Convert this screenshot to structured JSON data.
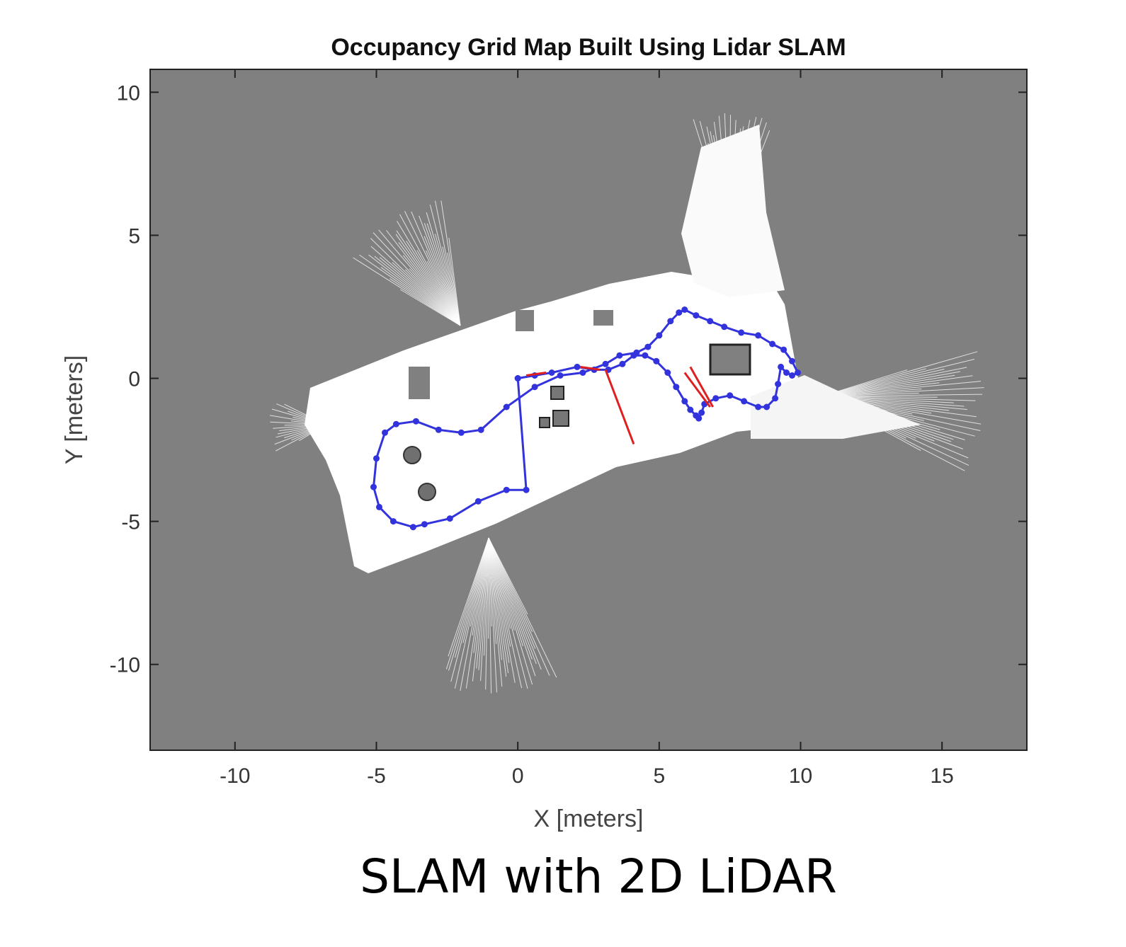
{
  "chart_data": {
    "type": "scatter",
    "title": "Occupancy Grid Map Built Using Lidar SLAM",
    "xlabel": "X [meters]",
    "ylabel": "Y [meters]",
    "xlim": [
      -13,
      18
    ],
    "ylim": [
      -13,
      10.8
    ],
    "xticks": [
      -10,
      -5,
      0,
      5,
      10,
      15
    ],
    "yticks": [
      10,
      5,
      0,
      -5,
      -10
    ],
    "grid": false,
    "colors": {
      "unknown": "#808080",
      "free": "#ffffff",
      "occupied": "#000000",
      "trajectory": "#3333dd",
      "loop_closure": "#e02020"
    },
    "series": [
      {
        "kind": "trajectory",
        "x": [
          0,
          0.6,
          1.2,
          2.1,
          2.7,
          3.2,
          3.7,
          4.1,
          4.5,
          4.9,
          5.3,
          5.6,
          5.9,
          6.1,
          6.3,
          6.4,
          6.5,
          6.6,
          7.0,
          7.5,
          8.0,
          8.5,
          8.8,
          9.1,
          9.2,
          9.3,
          9.5,
          9.7,
          9.9,
          9.7,
          9.4,
          9.0,
          8.5,
          7.9,
          7.3,
          6.8,
          6.3,
          5.9,
          5.7,
          5.4,
          5.0,
          4.6,
          4.2,
          3.6,
          3.1,
          2.3,
          1.5,
          0.6,
          -0.4,
          -1.3,
          -2.0,
          -2.8,
          -3.6,
          -4.3,
          -4.7,
          -5.0,
          -5.1,
          -4.9,
          -4.4,
          -3.7,
          -3.3,
          -2.4,
          -1.4,
          -0.4,
          0.3,
          0
        ],
        "y": [
          0,
          0.1,
          0.2,
          0.4,
          0.3,
          0.3,
          0.5,
          0.8,
          0.8,
          0.6,
          0.2,
          -0.3,
          -0.8,
          -1.1,
          -1.3,
          -1.4,
          -1.2,
          -0.9,
          -0.7,
          -0.6,
          -0.8,
          -1.0,
          -1.0,
          -0.7,
          -0.2,
          0.4,
          0.2,
          0.1,
          0.2,
          0.6,
          1.0,
          1.2,
          1.5,
          1.6,
          1.8,
          2.0,
          2.2,
          2.4,
          2.3,
          2.0,
          1.5,
          1.1,
          0.9,
          0.8,
          0.5,
          0.2,
          0.1,
          -0.3,
          -1.0,
          -1.8,
          -1.9,
          -1.8,
          -1.5,
          -1.6,
          -1.9,
          -2.8,
          -3.8,
          -4.5,
          -5.0,
          -5.2,
          -5.1,
          -4.9,
          -4.3,
          -3.9,
          -3.9,
          0
        ]
      },
      {
        "kind": "loop_closures",
        "segments": [
          [
            [
              0.3,
              0.1
            ],
            [
              1.0,
              0.2
            ]
          ],
          [
            [
              2.2,
              0.4
            ],
            [
              2.9,
              0.3
            ]
          ],
          [
            [
              3.1,
              0.3
            ],
            [
              4.1,
              -2.3
            ]
          ],
          [
            [
              5.9,
              0.2
            ],
            [
              6.8,
              -1.0
            ]
          ],
          [
            [
              6.1,
              0.4
            ],
            [
              6.9,
              -1.0
            ]
          ]
        ]
      }
    ]
  },
  "caption": "SLAM with 2D LiDAR"
}
